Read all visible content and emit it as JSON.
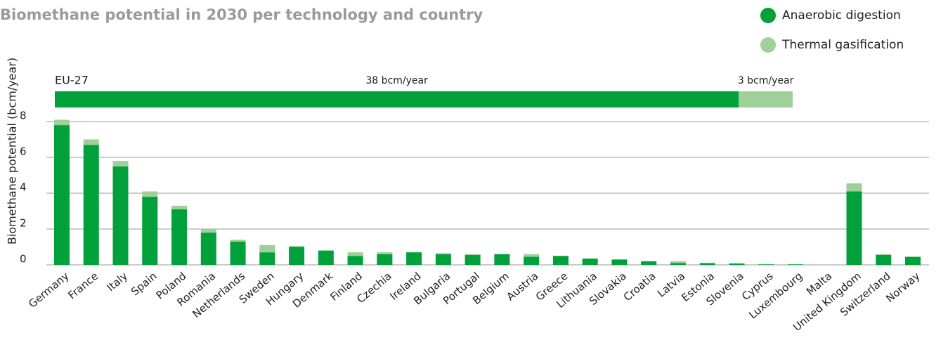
{
  "chart_data": {
    "type": "stacked_bar",
    "title": "Biomethane potential in 2030 per technology and country",
    "y_label": "Biomethane potential (bcm/year)",
    "categories": [
      "Germany",
      "France",
      "Italy",
      "Spain",
      "Poland",
      "Romania",
      "Netherlands",
      "Sweden",
      "Hungary",
      "Denmark",
      "Finland",
      "Czechia",
      "Ireland",
      "Bulgaria",
      "Portugal",
      "Belgium",
      "Austria",
      "Greece",
      "Lithuania",
      "Slovakia",
      "Croatia",
      "Latvia",
      "Estonia",
      "Slovenia",
      "Cyprus",
      "Luxembourg",
      "Malta",
      "United Kingdom",
      "Switzerland",
      "Norway"
    ],
    "series": [
      {
        "name": "Anaerobic digestion",
        "color": "#00a13a",
        "values": [
          7.8,
          6.7,
          5.5,
          3.8,
          3.1,
          1.8,
          1.3,
          0.7,
          1.0,
          0.8,
          0.5,
          0.6,
          0.7,
          0.6,
          0.55,
          0.6,
          0.45,
          0.5,
          0.35,
          0.3,
          0.2,
          0.1,
          0.1,
          0.08,
          0.03,
          0.03,
          0,
          4.1,
          0.55,
          0.45
        ]
      },
      {
        "name": "Thermal gasification",
        "color": "#9fd09a",
        "values": [
          0.3,
          0.3,
          0.3,
          0.3,
          0.2,
          0.2,
          0.1,
          0.4,
          0.05,
          0,
          0.2,
          0.1,
          0,
          0.05,
          0.05,
          0,
          0.15,
          0,
          0,
          0,
          0,
          0.1,
          0,
          0,
          0.02,
          0,
          0,
          0.45,
          0.05,
          0
        ]
      }
    ],
    "eu_total": {
      "label": "EU-27",
      "values": [
        38,
        3
      ],
      "value_labels": [
        "38 bcm/year",
        "3 bcm/year"
      ]
    },
    "ylim": [
      0,
      8
    ],
    "yticks": [
      0,
      2,
      4,
      6,
      8
    ],
    "grid": true,
    "legend": "top-right"
  }
}
